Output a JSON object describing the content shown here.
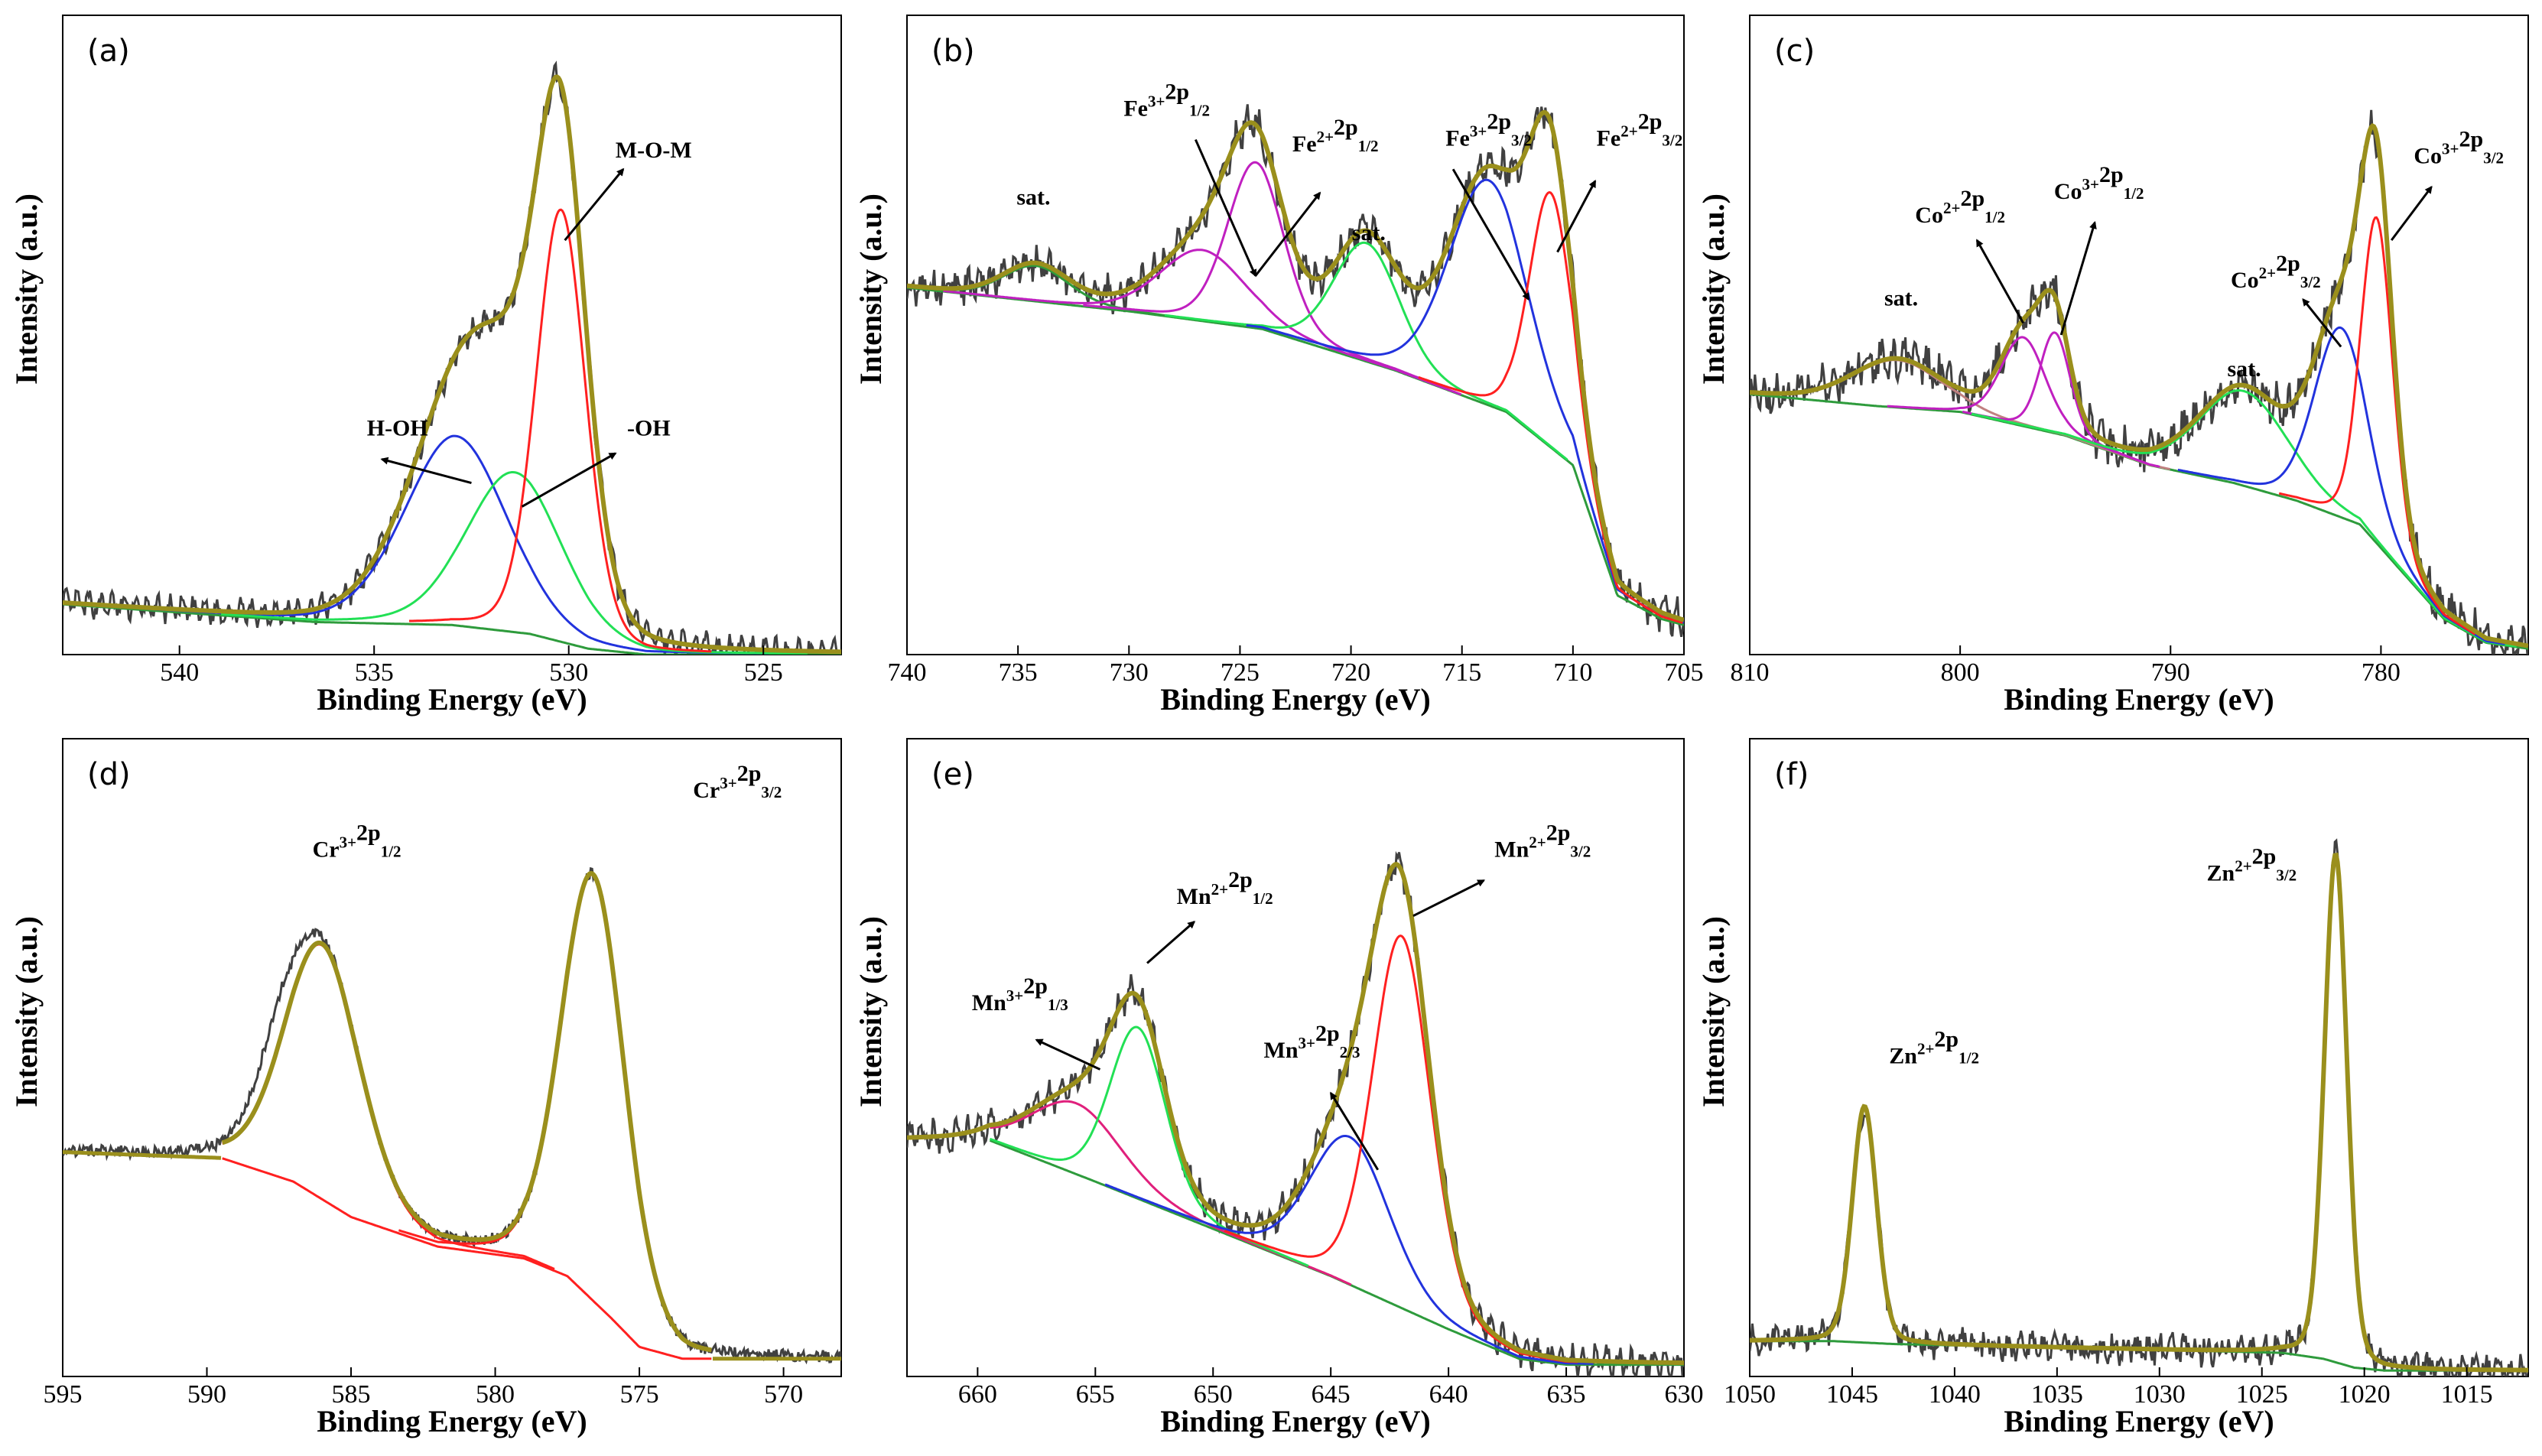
{
  "chart_data": [
    {
      "type": "line",
      "panel": "(a)",
      "xlabel": "Binding Energy (eV)",
      "ylabel": "Intensity (a.u.)",
      "xlim": [
        543,
        523
      ],
      "ylim": [
        0,
        1.08
      ],
      "xticks": [
        540,
        535,
        530,
        525
      ],
      "background": {
        "color": "#2e9b3c",
        "points": [
          [
            543,
            0.085
          ],
          [
            536.5,
            0.055
          ],
          [
            533,
            0.05
          ],
          [
            531,
            0.035
          ],
          [
            529.5,
            0.01
          ],
          [
            528,
            0.0
          ],
          [
            523,
            0.0
          ]
        ]
      },
      "peaks": [
        {
          "name": "H-OH",
          "center": 532.9,
          "height": 0.32,
          "fwhm": 3.1,
          "color": "#2233dd"
        },
        {
          "name": "-OH",
          "center": 531.4,
          "height": 0.27,
          "fwhm": 2.9,
          "color": "#22e055"
        },
        {
          "name": "M-O-M",
          "center": 530.2,
          "height": 0.73,
          "fwhm": 1.5,
          "color": "#ff2020"
        }
      ],
      "satellites": [],
      "labels": [
        {
          "text": "M-O-M",
          "x": 528.8,
          "y": 0.84,
          "anchor": "start"
        },
        {
          "text": "-OH",
          "x": 528.5,
          "y": 0.37,
          "anchor": "start"
        },
        {
          "text": "H-OH",
          "x": 534.4,
          "y": 0.37,
          "anchor": "middle"
        }
      ],
      "arrows": [
        {
          "from": [
            530.1,
            0.7
          ],
          "to": [
            528.6,
            0.82
          ]
        },
        {
          "from": [
            531.2,
            0.25
          ],
          "to": [
            528.8,
            0.34
          ]
        },
        {
          "from": [
            532.5,
            0.29
          ],
          "to": [
            534.8,
            0.33
          ]
        }
      ],
      "noise": 0.012,
      "raw_extra": 0.015
    },
    {
      "type": "line",
      "panel": "(b)",
      "xlabel": "Binding Energy (eV)",
      "ylabel": "Intensity (a.u.)",
      "xlim": [
        740,
        705
      ],
      "ylim": [
        0,
        1.08
      ],
      "xticks": [
        740,
        735,
        730,
        725,
        720,
        715,
        710,
        705
      ],
      "background": {
        "color": "#2e9b3c",
        "points": [
          [
            740,
            0.62
          ],
          [
            730,
            0.58
          ],
          [
            724,
            0.55
          ],
          [
            718,
            0.48
          ],
          [
            713,
            0.41
          ],
          [
            710,
            0.32
          ],
          [
            708,
            0.1
          ],
          [
            706,
            0.06
          ],
          [
            705,
            0.05
          ]
        ]
      },
      "peaks": [
        {
          "name": "sat.",
          "center": 734.2,
          "height": 0.06,
          "fwhm": 3.5,
          "color": "#2e9b3c"
        },
        {
          "name": "Fe3+ 2p1/2",
          "center": 726.7,
          "height": 0.12,
          "fwhm": 4.5,
          "color": "#c020c0"
        },
        {
          "name": "Fe2+ 2p1/2",
          "center": 724.3,
          "height": 0.28,
          "fwhm": 3.0,
          "color": "#c020c0"
        },
        {
          "name": "sat.",
          "center": 719.3,
          "height": 0.2,
          "fwhm": 3.5,
          "color": "#22e055"
        },
        {
          "name": "Fe3+ 2p3/2",
          "center": 713.8,
          "height": 0.38,
          "fwhm": 4.2,
          "color": "#2233dd"
        },
        {
          "name": "Fe2+ 2p3/2",
          "center": 711.0,
          "height": 0.43,
          "fwhm": 2.3,
          "color": "#ff2020"
        }
      ],
      "satellites": [],
      "labels": [
        {
          "text": "sat.",
          "x": 734.3,
          "y": 0.76,
          "anchor": "middle"
        },
        {
          "text": "sat.",
          "x": 719.2,
          "y": 0.7,
          "anchor": "middle"
        },
        {
          "text": "Fe3+2p1/2",
          "x": 728.3,
          "y": 0.91,
          "anchor": "middle"
        },
        {
          "text": "Fe2+2p1/2",
          "x": 720.7,
          "y": 0.85,
          "anchor": "middle"
        },
        {
          "text": "Fe3+2p3/2",
          "x": 713.8,
          "y": 0.86,
          "anchor": "middle"
        },
        {
          "text": "Fe2+2p3/2",
          "x": 707.0,
          "y": 0.86,
          "anchor": "middle"
        }
      ],
      "arrows": [
        {
          "from": [
            727.0,
            0.87
          ],
          "to": [
            724.3,
            0.64
          ]
        },
        {
          "from": [
            724.3,
            0.64
          ],
          "to": [
            721.4,
            0.78
          ]
        },
        {
          "from": [
            715.4,
            0.82
          ],
          "to": [
            712.0,
            0.6
          ]
        },
        {
          "from": [
            710.7,
            0.68
          ],
          "to": [
            709.0,
            0.8
          ]
        }
      ],
      "noise": 0.022,
      "raw_extra": 0.015
    },
    {
      "type": "line",
      "panel": "(c)",
      "xlabel": "Binding Energy (eV)",
      "ylabel": "Intensity (a.u.)",
      "xlim": [
        810,
        773
      ],
      "ylim": [
        0,
        1.08
      ],
      "xticks": [
        810,
        800,
        790,
        780
      ],
      "background": {
        "color": "#2e9b3c",
        "points": [
          [
            810,
            0.44
          ],
          [
            804,
            0.42
          ],
          [
            800,
            0.41
          ],
          [
            795,
            0.37
          ],
          [
            791,
            0.32
          ],
          [
            787,
            0.29
          ],
          [
            784,
            0.26
          ],
          [
            781,
            0.22
          ],
          [
            779,
            0.14
          ],
          [
            777,
            0.06
          ],
          [
            775,
            0.02
          ],
          [
            773,
            0.01
          ]
        ]
      },
      "peaks": [
        {
          "name": "sat.",
          "center": 803.0,
          "height": 0.08,
          "fwhm": 5.0,
          "color": "#c08080"
        },
        {
          "name": "Co2+ 2p1/2",
          "center": 797.0,
          "height": 0.15,
          "fwhm": 2.5,
          "color": "#c020c0"
        },
        {
          "name": "Co3+ 2p1/2",
          "center": 795.5,
          "height": 0.17,
          "fwhm": 1.7,
          "color": "#c020c0"
        },
        {
          "name": "sat.",
          "center": 786.5,
          "height": 0.16,
          "fwhm": 5.0,
          "color": "#22e055"
        },
        {
          "name": "Co2+ 2p3/2",
          "center": 781.9,
          "height": 0.32,
          "fwhm": 3.0,
          "color": "#2233dd"
        },
        {
          "name": "Co3+ 2p3/2",
          "center": 780.2,
          "height": 0.55,
          "fwhm": 1.8,
          "color": "#ff2020"
        }
      ],
      "satellites": [],
      "labels": [
        {
          "text": "sat.",
          "x": 802.8,
          "y": 0.59,
          "anchor": "middle"
        },
        {
          "text": "sat.",
          "x": 786.5,
          "y": 0.47,
          "anchor": "middle"
        },
        {
          "text": "Co2+2p1/2",
          "x": 800.0,
          "y": 0.73,
          "anchor": "middle"
        },
        {
          "text": "Co3+2p1/2",
          "x": 793.4,
          "y": 0.77,
          "anchor": "middle"
        },
        {
          "text": "Co2+2p3/2",
          "x": 785.0,
          "y": 0.62,
          "anchor": "middle"
        },
        {
          "text": "Co3+2p3/2",
          "x": 776.3,
          "y": 0.83,
          "anchor": "middle"
        }
      ],
      "arrows": [
        {
          "from": [
            797.0,
            0.56
          ],
          "to": [
            799.2,
            0.7
          ]
        },
        {
          "from": [
            795.2,
            0.54
          ],
          "to": [
            793.6,
            0.73
          ]
        },
        {
          "from": [
            781.9,
            0.52
          ],
          "to": [
            783.7,
            0.6
          ]
        },
        {
          "from": [
            779.5,
            0.7
          ],
          "to": [
            777.6,
            0.79
          ]
        }
      ],
      "noise": 0.028,
      "raw_extra": 0.015
    },
    {
      "type": "line",
      "panel": "(d)",
      "xlabel": "Binding Energy (eV)",
      "ylabel": "Intensity (a.u.)",
      "xlim": [
        595,
        568
      ],
      "ylim": [
        0,
        1.08
      ],
      "xticks": [
        595,
        590,
        585,
        580,
        575,
        570
      ],
      "background": {
        "color": "#ff2020",
        "points": [
          [
            589.5,
            0.37
          ],
          [
            587,
            0.33
          ],
          [
            585,
            0.27
          ],
          [
            582,
            0.22
          ],
          [
            579,
            0.2
          ],
          [
            577.5,
            0.17
          ],
          [
            576,
            0.1
          ],
          [
            575,
            0.05
          ],
          [
            573.5,
            0.03
          ],
          [
            572.5,
            0.03
          ]
        ]
      },
      "peaks": [
        {
          "name": "Cr3+ 2p1/2",
          "center": 586.0,
          "height": 0.43,
          "fwhm": 3.1,
          "color": "#ff2020"
        },
        {
          "name": "Cr3+ 2p3/2",
          "center": 576.6,
          "height": 0.72,
          "fwhm": 2.6,
          "color": "#ff2020"
        }
      ],
      "satellites": [
        {
          "center": 587.6,
          "height": 0.08,
          "fwhm": 1.8
        }
      ],
      "labels": [
        {
          "text": "Cr3+2p1/2",
          "x": 584.8,
          "y": 0.88,
          "anchor": "middle"
        },
        {
          "text": "Cr3+2p3/2",
          "x": 571.6,
          "y": 0.98,
          "anchor": "middle"
        }
      ],
      "arrows": [],
      "noise": 0.01,
      "raw_extra": 0.0,
      "outer_baseline": [
        [
          595,
          0.38
        ],
        [
          589.5,
          0.37
        ],
        [
          572.5,
          0.03
        ],
        [
          568,
          0.03
        ]
      ]
    },
    {
      "type": "line",
      "panel": "(e)",
      "xlabel": "Binding Energy (eV)",
      "ylabel": "Intensity (a.u.)",
      "xlim": [
        663,
        630
      ],
      "ylim": [
        0,
        1.08
      ],
      "xticks": [
        660,
        655,
        650,
        645,
        640,
        635,
        630
      ],
      "background": {
        "color": "#2e9b3c",
        "points": [
          [
            659.5,
            0.4
          ],
          [
            655,
            0.33
          ],
          [
            650,
            0.25
          ],
          [
            645,
            0.17
          ],
          [
            640,
            0.08
          ],
          [
            637,
            0.03
          ],
          [
            635,
            0.02
          ],
          [
            630,
            0.02
          ]
        ]
      },
      "peaks": [
        {
          "name": "Mn3+ 2p1/3",
          "center": 655.8,
          "height": 0.12,
          "fwhm": 4.5,
          "color": "#e0207c"
        },
        {
          "name": "Mn2+ 2p1/2",
          "center": 653.2,
          "height": 0.29,
          "fwhm": 2.8,
          "color": "#22e055"
        },
        {
          "name": "Mn3+ 2p2/3",
          "center": 644.2,
          "height": 0.25,
          "fwhm": 4.0,
          "color": "#2233dd"
        },
        {
          "name": "Mn2+ 2p3/2",
          "center": 642.0,
          "height": 0.63,
          "fwhm": 2.9,
          "color": "#ff2020"
        }
      ],
      "satellites": [],
      "labels": [
        {
          "text": "Mn3+2p1/3",
          "x": 658.2,
          "y": 0.62,
          "anchor": "middle"
        },
        {
          "text": "Mn2+2p1/2",
          "x": 649.5,
          "y": 0.8,
          "anchor": "middle"
        },
        {
          "text": "Mn3+2p2/3",
          "x": 645.8,
          "y": 0.54,
          "anchor": "middle"
        },
        {
          "text": "Mn2+2p3/2",
          "x": 636.0,
          "y": 0.88,
          "anchor": "middle"
        }
      ],
      "arrows": [
        {
          "from": [
            654.8,
            0.52
          ],
          "to": [
            657.5,
            0.57
          ]
        },
        {
          "from": [
            652.8,
            0.7
          ],
          "to": [
            650.8,
            0.77
          ]
        },
        {
          "from": [
            643.0,
            0.35
          ],
          "to": [
            645.0,
            0.48
          ]
        },
        {
          "from": [
            641.5,
            0.78
          ],
          "to": [
            638.5,
            0.84
          ]
        }
      ],
      "noise": 0.018,
      "raw_extra": 0.015
    },
    {
      "type": "line",
      "panel": "(f)",
      "xlabel": "Binding Energy (eV)",
      "ylabel": "Intensity (a.u.)",
      "xlim": [
        1050,
        1012
      ],
      "ylim": [
        0,
        1.08
      ],
      "xticks": [
        1050,
        1045,
        1040,
        1035,
        1030,
        1025,
        1020,
        1015
      ],
      "background": {
        "color": "#2e9b3c",
        "points": [
          [
            1050,
            0.06
          ],
          [
            1046,
            0.06
          ],
          [
            1043,
            0.055
          ],
          [
            1030,
            0.045
          ],
          [
            1024,
            0.04
          ],
          [
            1022,
            0.03
          ],
          [
            1020.5,
            0.015
          ],
          [
            1019,
            0.01
          ],
          [
            1012,
            0.01
          ]
        ]
      },
      "peaks": [
        {
          "name": "Zn2+ 2p1/2",
          "center": 1044.4,
          "height": 0.4,
          "fwhm": 1.4,
          "color": "#2e9b3c"
        },
        {
          "name": "Zn2+ 2p3/2",
          "center": 1021.4,
          "height": 0.86,
          "fwhm": 1.3,
          "color": "#2e9b3c"
        }
      ],
      "satellites": [],
      "labels": [
        {
          "text": "Zn2+2p1/2",
          "x": 1041.0,
          "y": 0.53,
          "anchor": "middle"
        },
        {
          "text": "Zn2+2p3/2",
          "x": 1025.5,
          "y": 0.84,
          "anchor": "middle"
        }
      ],
      "arrows": [],
      "noise": 0.02,
      "raw_extra": 0.01
    }
  ]
}
